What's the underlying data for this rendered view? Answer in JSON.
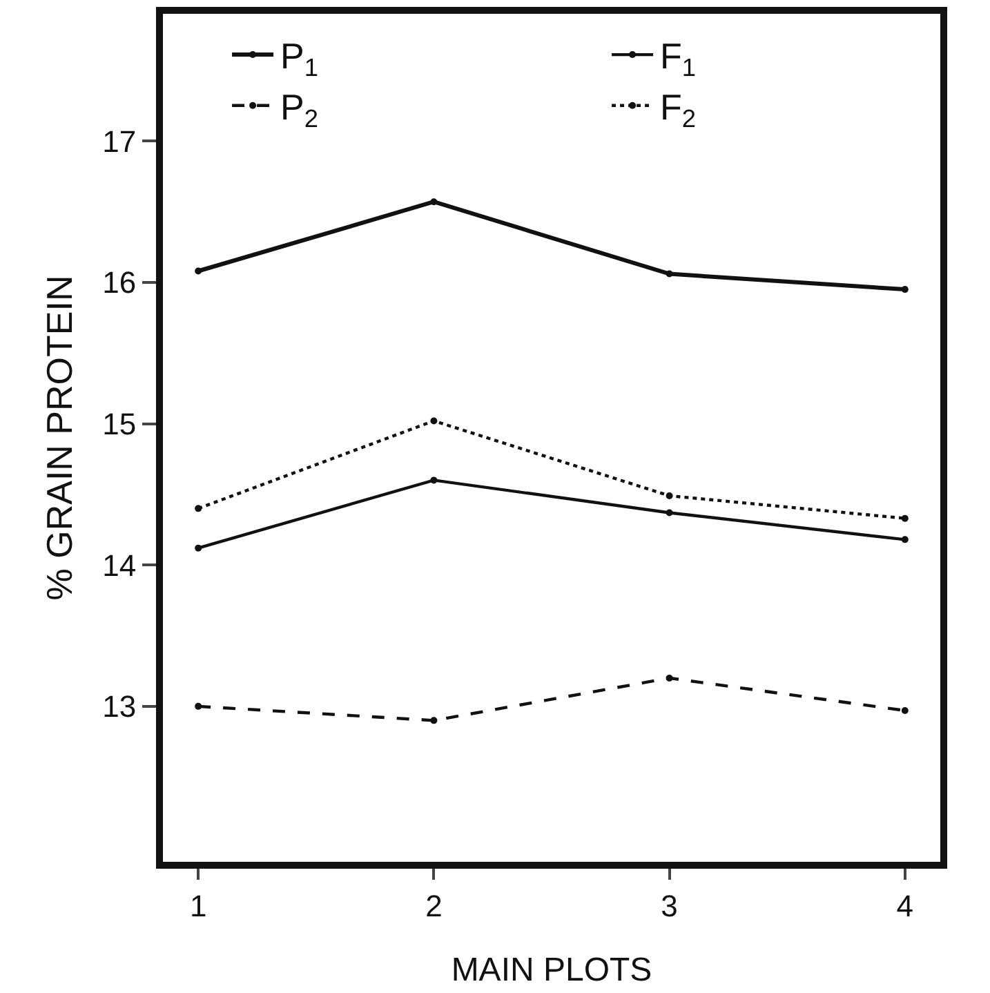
{
  "chart_data": {
    "type": "line",
    "xlabel": "MAIN PLOTS",
    "ylabel": "% GRAIN PROTEIN",
    "x": [
      1,
      2,
      3,
      4
    ],
    "series": [
      {
        "name": "P$_{1}$",
        "color": "#111111",
        "line_style": "solid",
        "values": [
          16.08,
          16.57,
          16.06,
          15.95
        ]
      },
      {
        "name": "F$_{1}$",
        "color": "#111111",
        "line_style": "solid",
        "values": [
          14.12,
          14.6,
          14.37,
          14.18
        ]
      },
      {
        "name": "P$_{2}$",
        "color": "#111111",
        "line_style": "dashed",
        "values": [
          13.0,
          12.9,
          13.2,
          12.97
        ]
      },
      {
        "name": "F$_{2}$",
        "color": "#111111",
        "line_style": "dotted",
        "values": [
          14.4,
          15.02,
          14.49,
          14.33
        ]
      }
    ],
    "xlim": [
      0.85,
      4.15
    ],
    "xticks": [
      1,
      2,
      3,
      4
    ],
    "ylim": [
      11.9,
      17.9
    ],
    "yticks": [
      13,
      14,
      15,
      16,
      17
    ],
    "marker": "circle",
    "legend": "top"
  }
}
